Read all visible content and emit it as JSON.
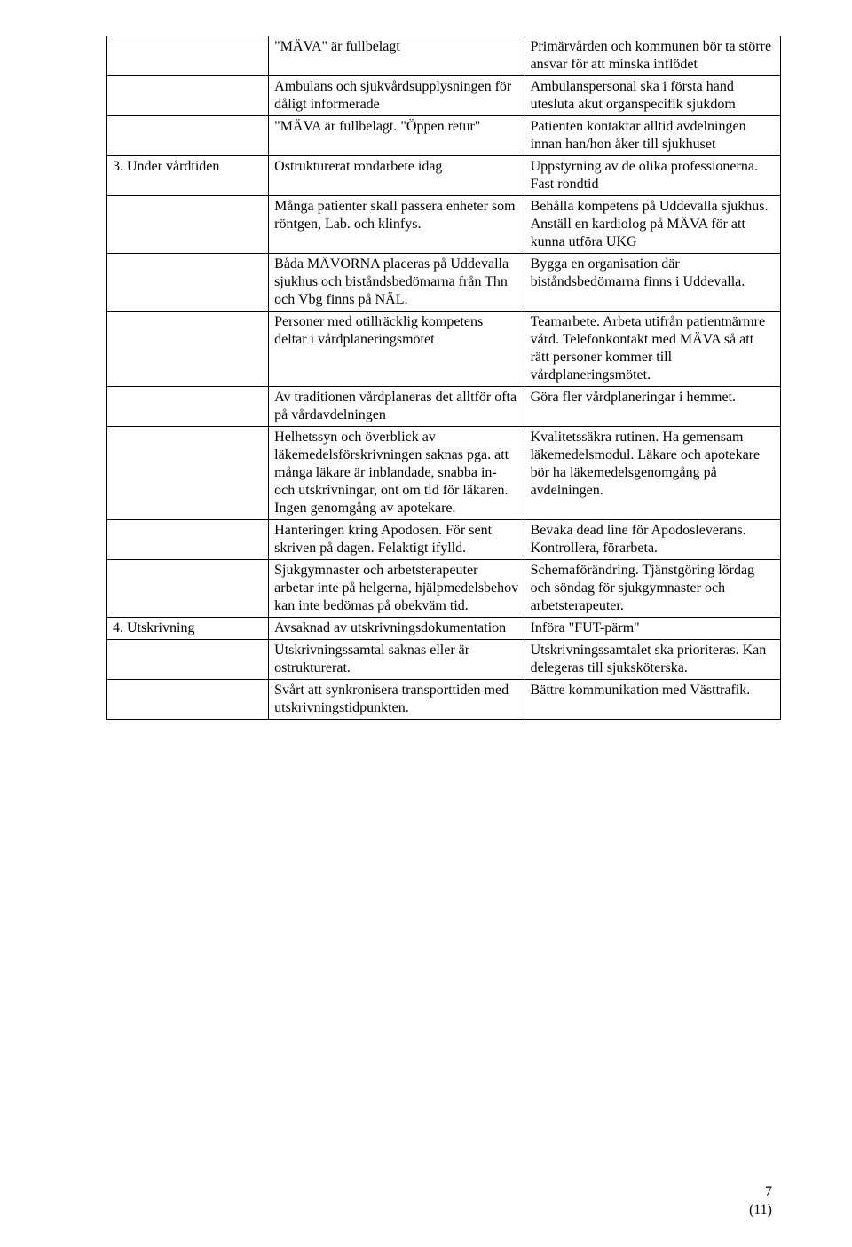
{
  "table": {
    "rows": [
      {
        "c1": "",
        "c2": "\"MÄVA\" är fullbelagt",
        "c3": "Primärvården och kommunen bör ta större ansvar för att minska inflödet"
      },
      {
        "c1": "",
        "c2": "Ambulans och sjukvårdsupplysningen för dåligt informerade",
        "c3": "Ambulanspersonal ska i första hand utesluta akut organspecifik sjukdom"
      },
      {
        "c1": "",
        "c2": "\"MÄVA är fullbelagt. \"Öppen retur\"",
        "c3": "Patienten kontaktar alltid avdelningen innan han/hon åker till sjukhuset"
      },
      {
        "c1": "3. Under vårdtiden",
        "c2": "Ostrukturerat rondarbete idag",
        "c3": "Uppstyrning av de olika professionerna. Fast rondtid"
      },
      {
        "c1": "",
        "c2": "Många patienter skall passera enheter som röntgen, Lab. och klinfys.",
        "c3": "Behålla kompetens på Uddevalla sjukhus. Anställ en kardiolog på MÄVA för att kunna utföra UKG"
      },
      {
        "c1": "",
        "c2": "Båda MÄVORNA placeras på Uddevalla sjukhus och biståndsbedömarna från Thn och Vbg finns på NÄL.",
        "c3": "Bygga en organisation där biståndsbedömarna finns i Uddevalla."
      },
      {
        "c1": "",
        "c2": "Personer med otillräcklig kompetens deltar i vårdplaneringsmötet",
        "c3": "Teamarbete. Arbeta utifrån patientnärmre vård. Telefonkontakt med MÄVA så att rätt personer kommer till vårdplaneringsmötet."
      },
      {
        "c1": "",
        "c2": "Av traditionen vårdplaneras det alltför ofta på vårdavdelningen",
        "c3": "Göra fler vårdplaneringar i hemmet."
      },
      {
        "c1": "",
        "c2": "Helhetssyn och överblick av läkemedelsförskrivningen saknas pga. att många läkare är inblandade, snabba in- och utskrivningar, ont om tid för läkaren. Ingen genomgång av apotekare.",
        "c3": "Kvalitetssäkra rutinen. Ha gemensam läkemedelsmodul. Läkare och apotekare bör ha läkemedelsgenomgång på avdelningen."
      },
      {
        "c1": "",
        "c2": "Hanteringen kring Apodosen. För sent skriven på dagen. Felaktigt ifylld.",
        "c3": "Bevaka dead line för Apodosleverans. Kontrollera, förarbeta."
      },
      {
        "c1": "",
        "c2": "Sjukgymnaster och arbetsterapeuter arbetar inte på helgerna, hjälpmedelsbehov kan inte bedömas på obekväm tid.",
        "c3": "Schemaförändring. Tjänstgöring lördag och söndag för sjukgymnaster och arbetsterapeuter."
      },
      {
        "c1": "4. Utskrivning",
        "c2": "Avsaknad av utskrivningsdokumentation",
        "c3": "Införa \"FUT-pärm\""
      },
      {
        "c1": "",
        "c2": "Utskrivningssamtal saknas eller är ostrukturerat.",
        "c3": "Utskrivningssamtalet ska prioriteras. Kan delegeras till sjuksköterska."
      },
      {
        "c1": "",
        "c2": "Svårt att synkronisera transporttiden med utskrivningstidpunkten.",
        "c3": "Bättre kommunikation med Västtrafik."
      }
    ]
  },
  "footer": {
    "page_num": "7",
    "page_total": "(11)"
  },
  "style": {
    "font_family": "Times New Roman",
    "font_size_pt": 12,
    "border_color": "#000000",
    "background_color": "#ffffff",
    "text_color": "#000000",
    "col_widths_pct": [
      24,
      38,
      38
    ]
  }
}
